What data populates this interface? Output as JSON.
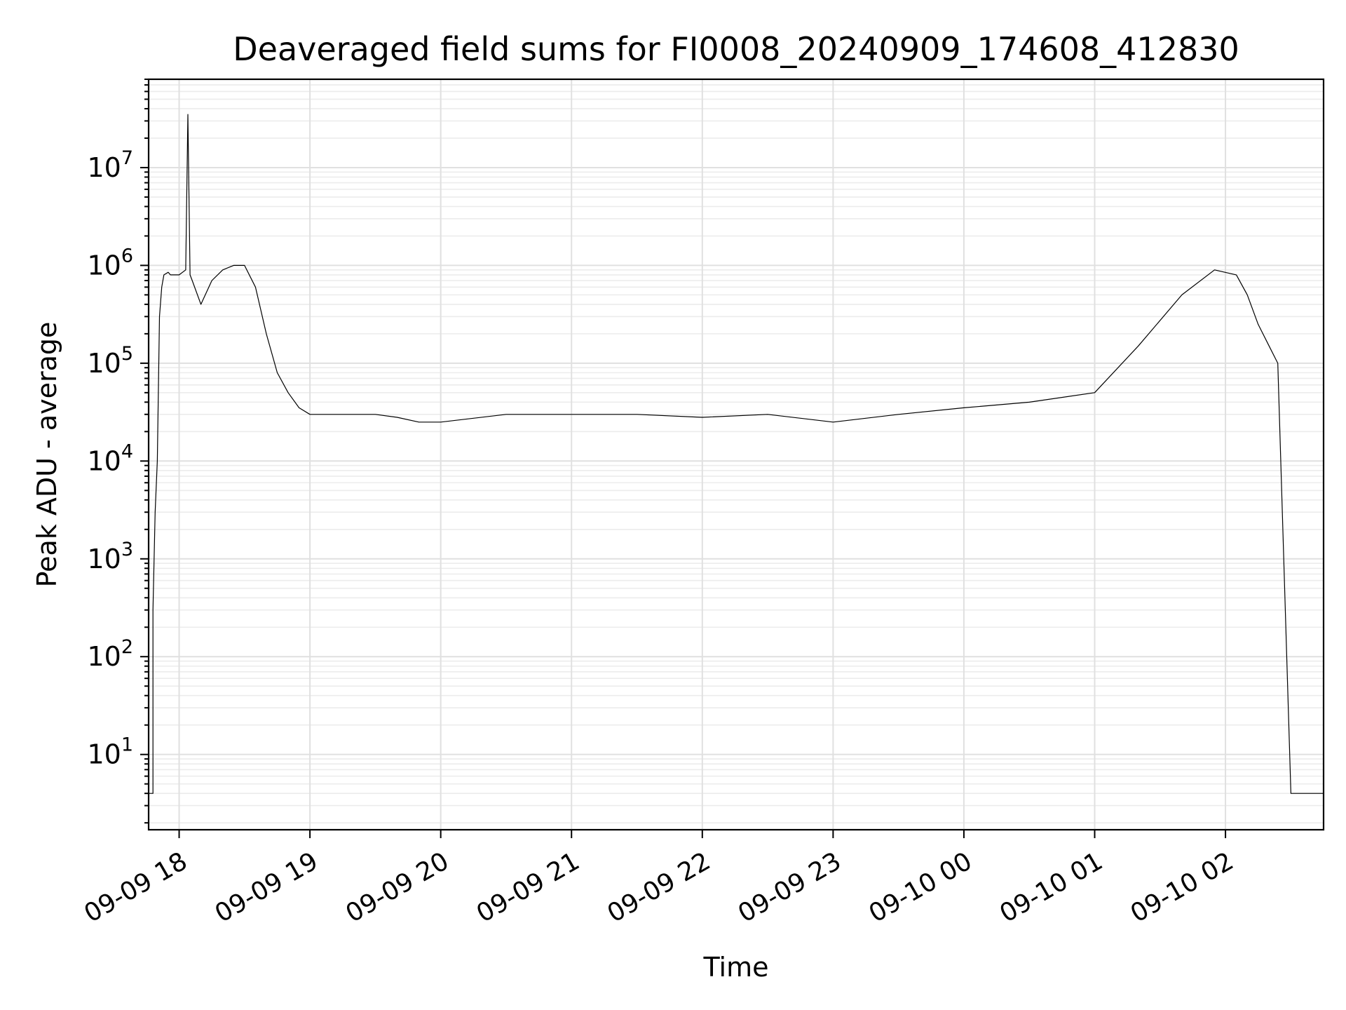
{
  "chart_data": {
    "type": "line",
    "title": "Deaveraged field sums for FI0008_20240909_174608_412830",
    "xlabel": "Time",
    "ylabel": "Peak ADU - average",
    "yscale": "log",
    "grid": true,
    "line_color": "#000000",
    "xlim": [
      "2024-09-09 17:46",
      "2024-09-10 02:45"
    ],
    "ylim": [
      1.7,
      80000000
    ],
    "xticks": [
      {
        "t": "2024-09-09 18:00",
        "label": "09-09 18"
      },
      {
        "t": "2024-09-09 19:00",
        "label": "09-09 19"
      },
      {
        "t": "2024-09-09 20:00",
        "label": "09-09 20"
      },
      {
        "t": "2024-09-09 21:00",
        "label": "09-09 21"
      },
      {
        "t": "2024-09-09 22:00",
        "label": "09-09 22"
      },
      {
        "t": "2024-09-09 23:00",
        "label": "09-09 23"
      },
      {
        "t": "2024-09-10 00:00",
        "label": "09-10 00"
      },
      {
        "t": "2024-09-10 01:00",
        "label": "09-10 01"
      },
      {
        "t": "2024-09-10 02:00",
        "label": "09-10 02"
      }
    ],
    "yticks": [
      {
        "v": 10,
        "base": "10",
        "exp": "1"
      },
      {
        "v": 100,
        "base": "10",
        "exp": "2"
      },
      {
        "v": 1000,
        "base": "10",
        "exp": "3"
      },
      {
        "v": 10000,
        "base": "10",
        "exp": "4"
      },
      {
        "v": 100000,
        "base": "10",
        "exp": "5"
      },
      {
        "v": 1000000,
        "base": "10",
        "exp": "6"
      },
      {
        "v": 10000000,
        "base": "10",
        "exp": "7"
      }
    ],
    "series": [
      {
        "x": [
          "2024-09-09 17:46",
          "2024-09-09 17:48",
          "2024-09-09 17:48",
          "2024-09-09 17:49",
          "2024-09-09 17:50",
          "2024-09-09 17:51",
          "2024-09-09 17:52",
          "2024-09-09 17:53",
          "2024-09-09 17:55",
          "2024-09-09 17:56",
          "2024-09-09 17:58",
          "2024-09-09 18:00",
          "2024-09-09 18:03",
          "2024-09-09 18:04",
          "2024-09-09 18:05",
          "2024-09-09 18:06",
          "2024-09-09 18:10",
          "2024-09-09 18:15",
          "2024-09-09 18:20",
          "2024-09-09 18:25",
          "2024-09-09 18:30",
          "2024-09-09 18:35",
          "2024-09-09 18:40",
          "2024-09-09 18:45",
          "2024-09-09 18:50",
          "2024-09-09 18:55",
          "2024-09-09 19:00",
          "2024-09-09 19:10",
          "2024-09-09 19:20",
          "2024-09-09 19:30",
          "2024-09-09 19:40",
          "2024-09-09 19:50",
          "2024-09-09 20:00",
          "2024-09-09 20:30",
          "2024-09-09 21:00",
          "2024-09-09 21:30",
          "2024-09-09 22:00",
          "2024-09-09 22:30",
          "2024-09-09 23:00",
          "2024-09-09 23:30",
          "2024-09-10 00:00",
          "2024-09-10 00:30",
          "2024-09-10 01:00",
          "2024-09-10 01:20",
          "2024-09-10 01:40",
          "2024-09-10 01:55",
          "2024-09-10 02:05",
          "2024-09-10 02:10",
          "2024-09-10 02:15",
          "2024-09-10 02:20",
          "2024-09-10 02:24",
          "2024-09-10 02:30",
          "2024-09-10 02:45"
        ],
        "y": [
          4,
          4,
          300,
          3000,
          10000,
          300000,
          600000,
          800000,
          850000,
          800000,
          800000,
          800000,
          900000,
          35000000,
          800000,
          700000,
          400000,
          700000,
          900000,
          1000000,
          1000000,
          600000,
          200000,
          80000,
          50000,
          35000,
          30000,
          30000,
          30000,
          30000,
          28000,
          25000,
          25000,
          30000,
          30000,
          30000,
          28000,
          30000,
          25000,
          30000,
          35000,
          40000,
          50000,
          150000,
          500000,
          900000,
          800000,
          500000,
          250000,
          150000,
          100000,
          4,
          4
        ]
      }
    ]
  }
}
